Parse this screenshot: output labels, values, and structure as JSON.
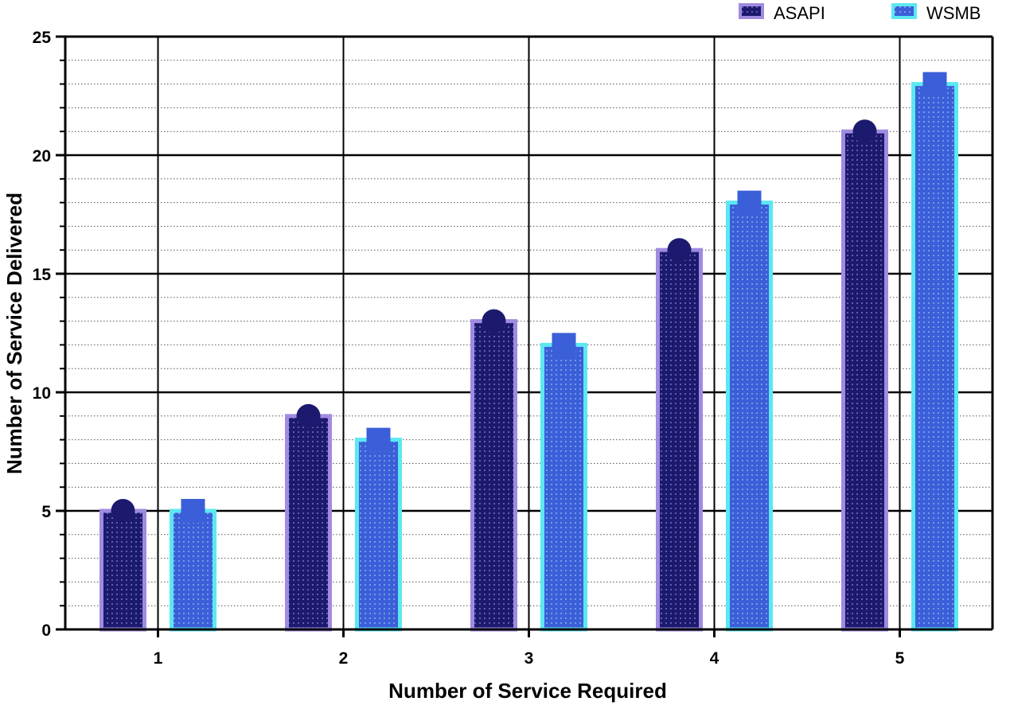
{
  "chart_data": {
    "type": "bar",
    "title": "",
    "xlabel": "Number of Service Required",
    "ylabel": "Number of Service Delivered",
    "categories": [
      "1",
      "2",
      "3",
      "4",
      "5"
    ],
    "series": [
      {
        "name": "ASAPI",
        "values": [
          5,
          9,
          13,
          16,
          21
        ],
        "fill": "#1c1a6e",
        "border": "#a08be0",
        "marker": "circle"
      },
      {
        "name": "WSMB",
        "values": [
          5,
          8,
          12,
          18,
          23
        ],
        "fill": "#3a5fd8",
        "border": "#5ce8f2",
        "marker": "square"
      }
    ],
    "ylim": [
      0,
      25
    ],
    "yticks": [
      0,
      5,
      10,
      15,
      20,
      25
    ],
    "grid": true,
    "legend_position": "top-right"
  }
}
